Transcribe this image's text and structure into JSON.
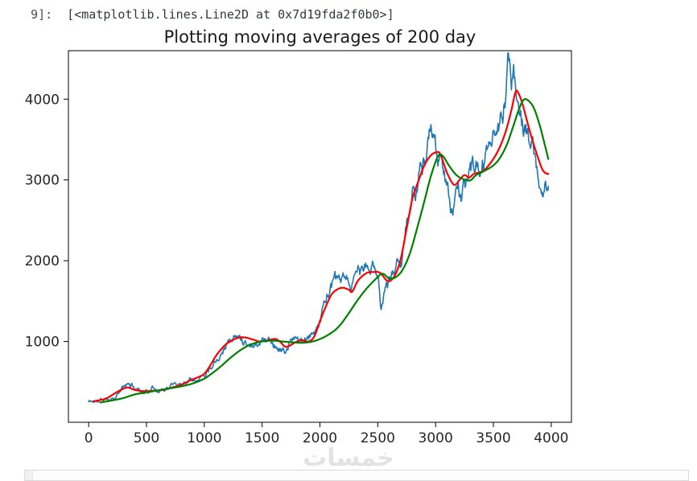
{
  "output_line": {
    "prompt": "9]:",
    "text": "[<matplotlib.lines.Line2D at 0x7d19fda2f0b0>]"
  },
  "watermark": {
    "text": "خمسات"
  },
  "chart_data": {
    "type": "line",
    "title": "Plotting moving averages of 200 day",
    "xlabel": "",
    "ylabel": "",
    "grid": false,
    "legend": "none",
    "xlim": [
      -175,
      4175
    ],
    "ylim": [
      0,
      4600
    ],
    "x_ticks": [
      0,
      500,
      1000,
      1500,
      2000,
      2500,
      3000,
      3500,
      4000
    ],
    "y_ticks": [
      1000,
      2000,
      3000,
      4000
    ],
    "axis_color": "#000000",
    "tick_label_color": "#262626",
    "title_color": "#1a1a1a",
    "series": [
      {
        "name": "daily-price",
        "color": "#1f77b4",
        "linewidth": 1.6,
        "noisy": true,
        "seed": 11,
        "noise_base": 12,
        "noise_scale": 0.032,
        "points": [
          [
            0,
            255
          ],
          [
            60,
            260
          ],
          [
            120,
            272
          ],
          [
            180,
            292
          ],
          [
            240,
            345
          ],
          [
            300,
            425
          ],
          [
            350,
            458
          ],
          [
            400,
            422
          ],
          [
            460,
            396
          ],
          [
            520,
            400
          ],
          [
            580,
            420
          ],
          [
            640,
            422
          ],
          [
            700,
            450
          ],
          [
            760,
            476
          ],
          [
            820,
            502
          ],
          [
            880,
            560
          ],
          [
            940,
            582
          ],
          [
            1000,
            622
          ],
          [
            1060,
            750
          ],
          [
            1120,
            880
          ],
          [
            1180,
            1000
          ],
          [
            1240,
            1062
          ],
          [
            1300,
            1052
          ],
          [
            1360,
            1040
          ],
          [
            1420,
            1002
          ],
          [
            1480,
            1032
          ],
          [
            1540,
            1052
          ],
          [
            1600,
            1000
          ],
          [
            1660,
            930
          ],
          [
            1700,
            882
          ],
          [
            1740,
            980
          ],
          [
            1800,
            1022
          ],
          [
            1860,
            992
          ],
          [
            1920,
            1012
          ],
          [
            1960,
            1120
          ],
          [
            2000,
            1300
          ],
          [
            2040,
            1480
          ],
          [
            2080,
            1652
          ],
          [
            2120,
            1750
          ],
          [
            2160,
            1682
          ],
          [
            2200,
            1702
          ],
          [
            2240,
            1622
          ],
          [
            2280,
            1682
          ],
          [
            2320,
            1820
          ],
          [
            2360,
            1852
          ],
          [
            2400,
            1900
          ],
          [
            2440,
            1872
          ],
          [
            2480,
            1890
          ],
          [
            2510,
            1700
          ],
          [
            2530,
            1480
          ],
          [
            2560,
            1650
          ],
          [
            2600,
            1832
          ],
          [
            2640,
            1862
          ],
          [
            2680,
            2000
          ],
          [
            2720,
            2250
          ],
          [
            2760,
            2500
          ],
          [
            2800,
            2850
          ],
          [
            2830,
            2700
          ],
          [
            2860,
            3000
          ],
          [
            2890,
            3150
          ],
          [
            2920,
            3050
          ],
          [
            2950,
            3400
          ],
          [
            2980,
            3530
          ],
          [
            3010,
            3300
          ],
          [
            3040,
            3150
          ],
          [
            3070,
            2950
          ],
          [
            3100,
            2850
          ],
          [
            3130,
            2700
          ],
          [
            3160,
            2752
          ],
          [
            3190,
            2850
          ],
          [
            3220,
            2752
          ],
          [
            3250,
            2900
          ],
          [
            3280,
            3050
          ],
          [
            3310,
            3150
          ],
          [
            3340,
            3000
          ],
          [
            3370,
            3080
          ],
          [
            3400,
            3120
          ],
          [
            3430,
            3200
          ],
          [
            3460,
            3320
          ],
          [
            3490,
            3650
          ],
          [
            3510,
            3750
          ],
          [
            3530,
            3550
          ],
          [
            3560,
            3610
          ],
          [
            3590,
            3900
          ],
          [
            3610,
            4050
          ],
          [
            3630,
            4390
          ],
          [
            3660,
            4250
          ],
          [
            3680,
            4150
          ],
          [
            3700,
            4100
          ],
          [
            3720,
            3950
          ],
          [
            3740,
            4050
          ],
          [
            3760,
            3850
          ],
          [
            3790,
            3650
          ],
          [
            3820,
            3450
          ],
          [
            3850,
            3330
          ],
          [
            3880,
            3050
          ],
          [
            3910,
            2900
          ],
          [
            3940,
            2980
          ],
          [
            3975,
            3090
          ]
        ]
      },
      {
        "name": "moving-average-short",
        "color": "#ff0000",
        "linewidth": 2.2,
        "noisy": false,
        "points": [
          [
            40,
            260
          ],
          [
            100,
            275
          ],
          [
            160,
            300
          ],
          [
            240,
            370
          ],
          [
            330,
            430
          ],
          [
            400,
            400
          ],
          [
            480,
            385
          ],
          [
            560,
            390
          ],
          [
            640,
            400
          ],
          [
            720,
            430
          ],
          [
            800,
            465
          ],
          [
            880,
            520
          ],
          [
            950,
            560
          ],
          [
            1000,
            600
          ],
          [
            1050,
            700
          ],
          [
            1100,
            820
          ],
          [
            1150,
            910
          ],
          [
            1200,
            980
          ],
          [
            1280,
            1040
          ],
          [
            1350,
            1050
          ],
          [
            1430,
            1020
          ],
          [
            1480,
            1000
          ],
          [
            1560,
            1020
          ],
          [
            1620,
            1030
          ],
          [
            1660,
            990
          ],
          [
            1700,
            935
          ],
          [
            1740,
            950
          ],
          [
            1800,
            1000
          ],
          [
            1850,
            1015
          ],
          [
            1900,
            1000
          ],
          [
            1950,
            1060
          ],
          [
            2000,
            1250
          ],
          [
            2050,
            1430
          ],
          [
            2100,
            1580
          ],
          [
            2150,
            1645
          ],
          [
            2200,
            1665
          ],
          [
            2250,
            1640
          ],
          [
            2280,
            1618
          ],
          [
            2330,
            1755
          ],
          [
            2400,
            1845
          ],
          [
            2460,
            1860
          ],
          [
            2520,
            1850
          ],
          [
            2590,
            1745
          ],
          [
            2650,
            1825
          ],
          [
            2700,
            2030
          ],
          [
            2750,
            2400
          ],
          [
            2800,
            2770
          ],
          [
            2850,
            2980
          ],
          [
            2900,
            3170
          ],
          [
            2950,
            3290
          ],
          [
            3000,
            3340
          ],
          [
            3040,
            3320
          ],
          [
            3100,
            3085
          ],
          [
            3160,
            2940
          ],
          [
            3210,
            3005
          ],
          [
            3250,
            3060
          ],
          [
            3290,
            3030
          ],
          [
            3330,
            3075
          ],
          [
            3370,
            3090
          ],
          [
            3420,
            3120
          ],
          [
            3480,
            3220
          ],
          [
            3540,
            3360
          ],
          [
            3600,
            3570
          ],
          [
            3650,
            3830
          ],
          [
            3690,
            4080
          ],
          [
            3710,
            4090
          ],
          [
            3750,
            3950
          ],
          [
            3800,
            3680
          ],
          [
            3840,
            3480
          ],
          [
            3880,
            3300
          ],
          [
            3920,
            3140
          ],
          [
            3950,
            3085
          ],
          [
            3975,
            3075
          ]
        ]
      },
      {
        "name": "moving-average-200",
        "color": "#008000",
        "linewidth": 2.2,
        "noisy": false,
        "points": [
          [
            100,
            245
          ],
          [
            200,
            270
          ],
          [
            300,
            300
          ],
          [
            400,
            345
          ],
          [
            500,
            370
          ],
          [
            600,
            395
          ],
          [
            700,
            420
          ],
          [
            800,
            445
          ],
          [
            900,
            480
          ],
          [
            1000,
            540
          ],
          [
            1080,
            620
          ],
          [
            1150,
            700
          ],
          [
            1220,
            790
          ],
          [
            1300,
            880
          ],
          [
            1380,
            950
          ],
          [
            1450,
            985
          ],
          [
            1520,
            1005
          ],
          [
            1600,
            1010
          ],
          [
            1680,
            1000
          ],
          [
            1760,
            990
          ],
          [
            1840,
            985
          ],
          [
            1920,
            995
          ],
          [
            2000,
            1030
          ],
          [
            2080,
            1090
          ],
          [
            2160,
            1180
          ],
          [
            2240,
            1330
          ],
          [
            2320,
            1500
          ],
          [
            2400,
            1650
          ],
          [
            2480,
            1770
          ],
          [
            2540,
            1840
          ],
          [
            2600,
            1780
          ],
          [
            2660,
            1800
          ],
          [
            2720,
            1900
          ],
          [
            2780,
            2100
          ],
          [
            2840,
            2400
          ],
          [
            2900,
            2720
          ],
          [
            2960,
            3050
          ],
          [
            3020,
            3290
          ],
          [
            3060,
            3300
          ],
          [
            3120,
            3170
          ],
          [
            3180,
            3060
          ],
          [
            3240,
            3010
          ],
          [
            3300,
            2995
          ],
          [
            3350,
            3060
          ],
          [
            3420,
            3110
          ],
          [
            3500,
            3180
          ],
          [
            3560,
            3280
          ],
          [
            3620,
            3450
          ],
          [
            3680,
            3700
          ],
          [
            3720,
            3870
          ],
          [
            3760,
            3990
          ],
          [
            3800,
            3985
          ],
          [
            3850,
            3890
          ],
          [
            3900,
            3680
          ],
          [
            3940,
            3460
          ],
          [
            3975,
            3260
          ]
        ]
      }
    ]
  }
}
